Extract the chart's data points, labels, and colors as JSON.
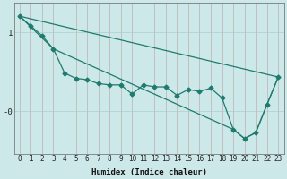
{
  "xlabel": "Humidex (Indice chaleur)",
  "bg_color": "#cde8e8",
  "line_color": "#1e7b6e",
  "grid_color": "#aed4d4",
  "ytick_labels": [
    "1",
    "-0"
  ],
  "ytick_values": [
    1.2,
    0.0
  ],
  "xlim": [
    -0.5,
    23.5
  ],
  "ylim": [
    -0.65,
    1.65
  ],
  "line1_x": [
    0,
    23
  ],
  "line1_y": [
    1.45,
    0.52
  ],
  "line2_x": [
    0,
    1,
    2,
    3,
    4,
    5,
    6,
    7,
    8,
    9,
    10,
    11,
    12,
    13,
    14,
    15,
    16,
    17,
    18,
    19,
    20,
    21,
    22,
    23
  ],
  "line2_y": [
    1.45,
    1.3,
    1.15,
    0.95,
    0.58,
    0.5,
    0.48,
    0.42,
    0.4,
    0.4,
    0.26,
    0.4,
    0.37,
    0.37,
    0.24,
    0.33,
    0.3,
    0.35,
    0.2,
    -0.28,
    -0.42,
    -0.33,
    0.1,
    0.52
  ],
  "line3_x": [
    0,
    3,
    19,
    20,
    21,
    22,
    23
  ],
  "line3_y": [
    1.45,
    0.95,
    -0.28,
    -0.42,
    -0.33,
    0.1,
    0.52
  ],
  "marker_style": "D",
  "marker_size": 2.5,
  "line_width": 0.9,
  "xlabel_fontsize": 6.5,
  "tick_fontsize": 5.5
}
